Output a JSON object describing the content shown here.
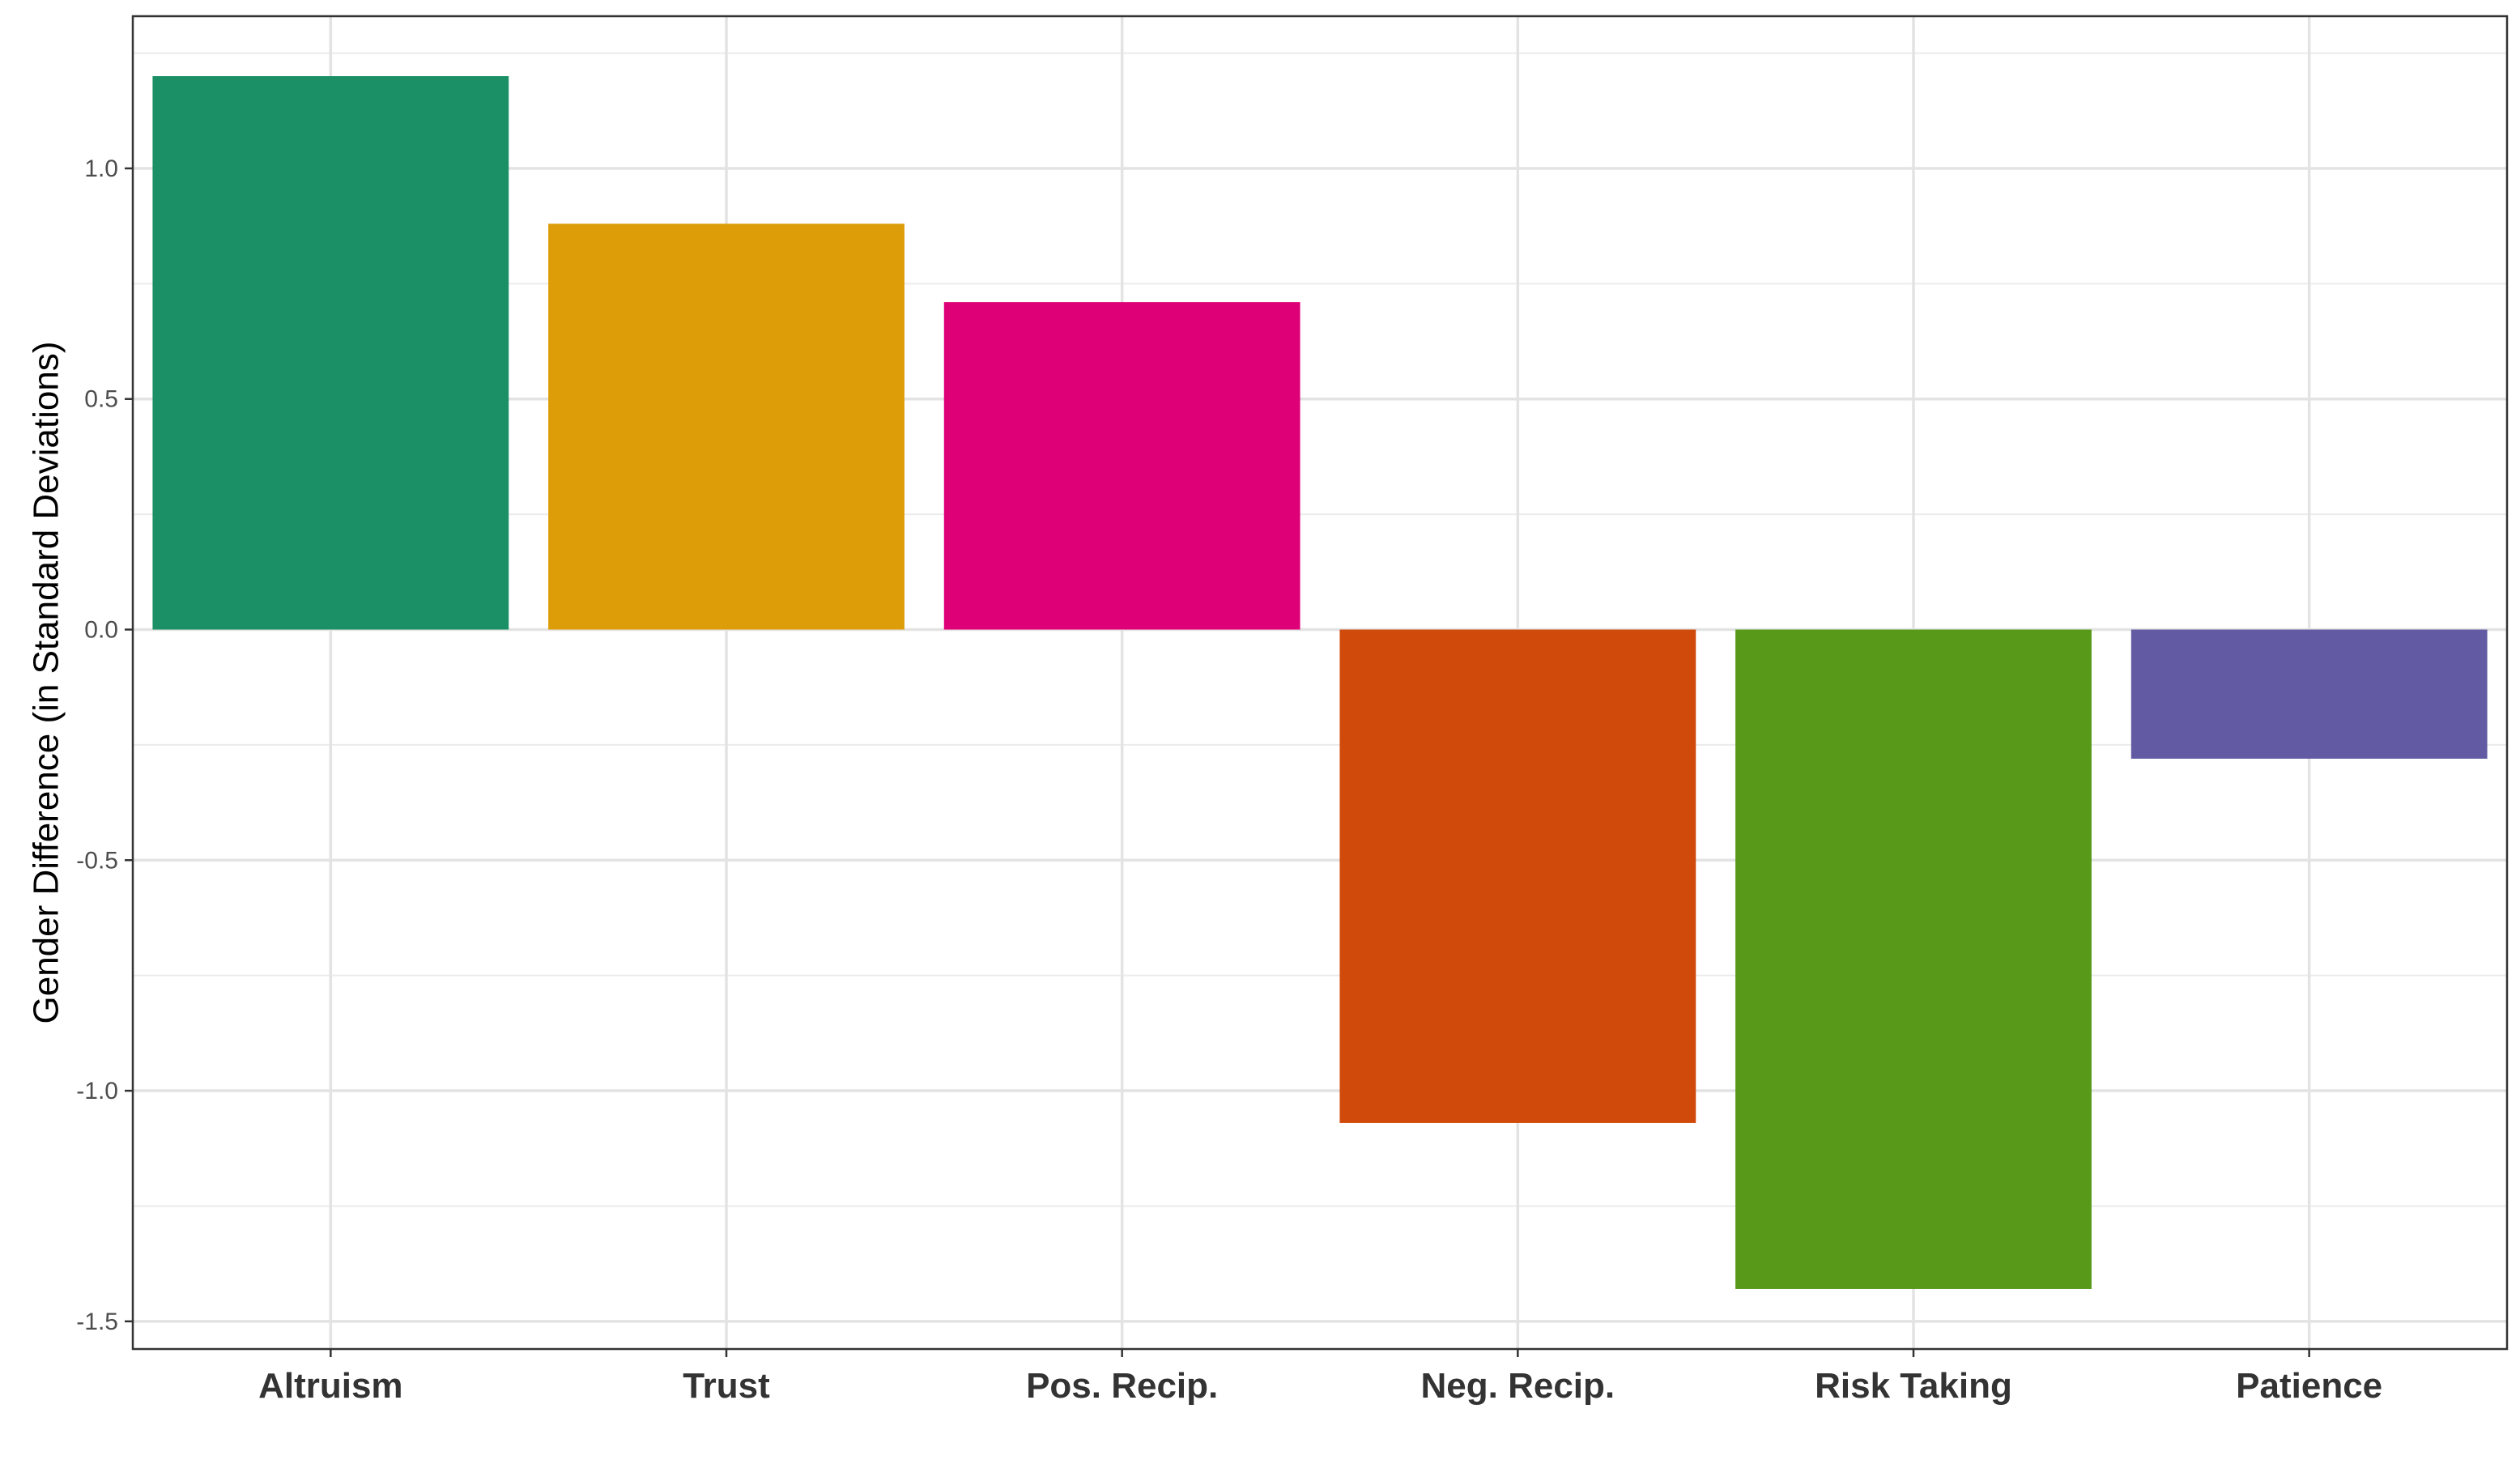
{
  "chart_data": {
    "type": "bar",
    "title": "",
    "xlabel": "",
    "ylabel": "Gender Difference (in Standard Deviations)",
    "categories": [
      "Altruism",
      "Trust",
      "Pos. Recip.",
      "Neg. Recip.",
      "Risk Taking",
      "Patience"
    ],
    "values": [
      1.2,
      0.88,
      0.71,
      -1.07,
      -1.43,
      -0.28
    ],
    "colors": [
      "#1b9066",
      "#dc9d08",
      "#de0077",
      "#d04a0b",
      "#58991a",
      "#625aa2"
    ],
    "ylim": [
      -1.56,
      1.33
    ],
    "yticks": [
      -1.5,
      -1.0,
      -0.5,
      0.0,
      0.5,
      1.0
    ],
    "ytick_labels": [
      "-1.5",
      "-1.0",
      "-0.5",
      "0.0",
      "0.5",
      "1.0"
    ],
    "grid": true,
    "legend": "none"
  }
}
